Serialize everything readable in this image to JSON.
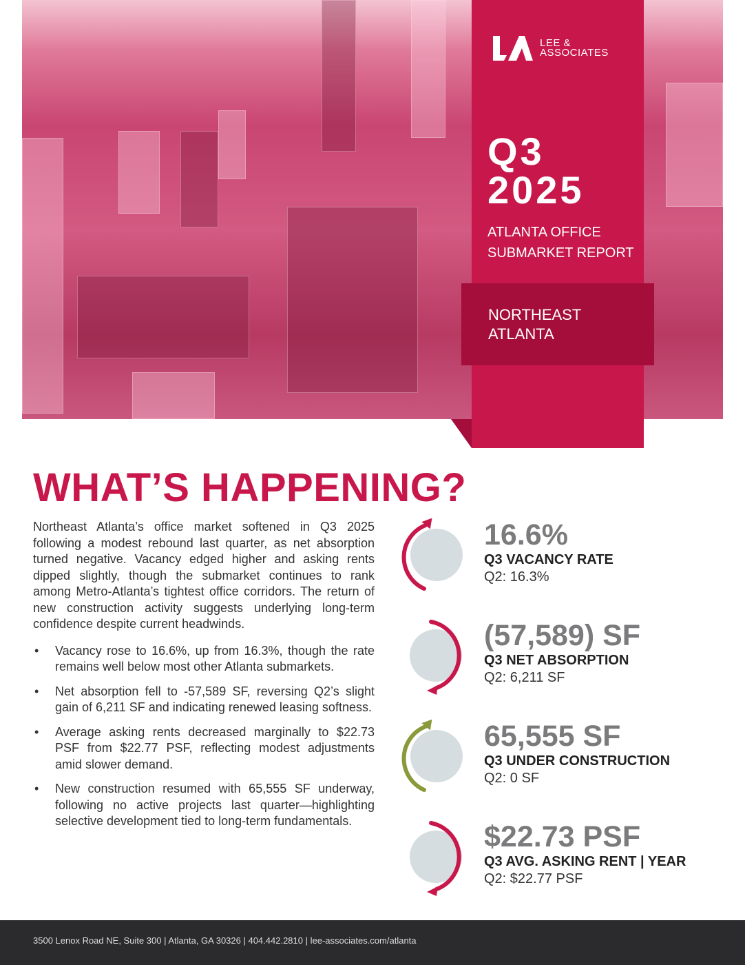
{
  "cover": {
    "logo_text_1": "LEE &",
    "logo_text_2": "ASSOCIATES",
    "quarter": "Q3",
    "year": "2025",
    "subtitle_1": "ATLANTA OFFICE",
    "subtitle_2": "SUBMARKET REPORT",
    "submarket_1": "NORTHEAST",
    "submarket_2": "ATLANTA"
  },
  "heading": "WHAT’S HAPPENING?",
  "intro": "Northeast Atlanta’s office market softened in Q3 2025 following a modest rebound last quarter, as net absorption turned negative. Vacancy edged higher and asking rents dipped slightly, though the submarket continues to rank among Metro-Atlanta’s tightest office corridors. The return of new construction activity suggests underlying long-term confidence despite current headwinds.",
  "bullets": [
    "Vacancy rose to 16.6%, up from 16.3%, though the rate remains well below most other Atlanta submarkets.",
    "Net absorption fell to -57,589 SF, reversing Q2’s slight gain of 6,211 SF and indicating renewed leasing softness.",
    "Average asking rents decreased marginally to $22.73 PSF from $22.77 PSF, reflecting modest adjustments amid slower demand.",
    "New construction resumed with 65,555 SF underway, following no active projects last quarter—highlighting selective development tied to long-term fundamentals."
  ],
  "stats": [
    {
      "value": "16.6%",
      "label": "Q3 VACANCY RATE",
      "previous": "Q2: 16.3%",
      "trend": "up",
      "color": "#c8174a"
    },
    {
      "value": "(57,589) SF",
      "label": "Q3 NET ABSORPTION",
      "previous": "Q2: 6,211 SF",
      "trend": "down",
      "color": "#c8174a"
    },
    {
      "value": "65,555 SF",
      "label": "Q3 UNDER CONSTRUCTION",
      "previous": "Q2: 0 SF",
      "trend": "up",
      "color": "#8a9a3a"
    },
    {
      "value": "$22.73 PSF",
      "label": "Q3 AVG. ASKING RENT | YEAR",
      "previous": "Q2: $22.77 PSF",
      "trend": "down",
      "color": "#c8174a"
    }
  ],
  "footer": "3500 Lenox Road NE, Suite 300 | Atlanta, GA 30326 | 404.442.2810 | lee-associates.com/atlanta",
  "colors": {
    "brand_red": "#c8174a",
    "dark_red": "#a50d3a",
    "footer_bg": "#2b2b2d"
  }
}
